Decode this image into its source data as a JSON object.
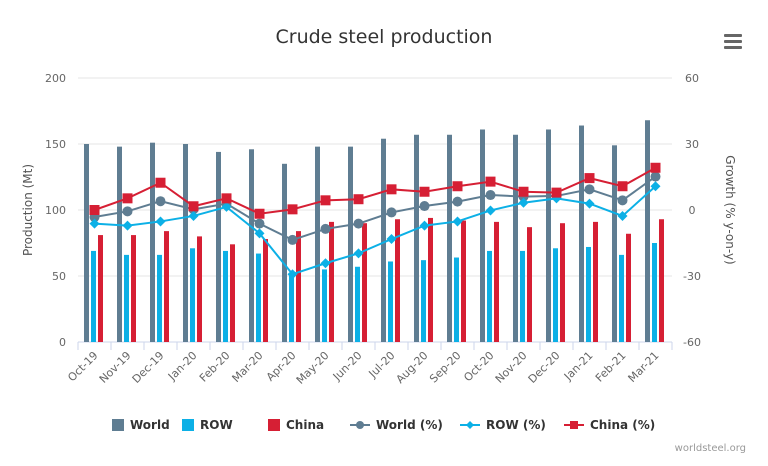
{
  "title": "Crude steel production",
  "credit": "worldsteel.org",
  "menu_icon": "hamburger-menu-icon",
  "chart_data": {
    "type": "bar+line",
    "title": "Crude steel production",
    "categories": [
      "Oct-19",
      "Nov-19",
      "Dec-19",
      "Jan-20",
      "Feb-20",
      "Mar-20",
      "Apr-20",
      "May-20",
      "Jun-20",
      "Jul-20",
      "Aug-20",
      "Sep-20",
      "Oct-20",
      "Nov-20",
      "Dec-20",
      "Jan-21",
      "Feb-21",
      "Mar-21"
    ],
    "y_left": {
      "label": "Production (Mt)",
      "ylim": [
        0,
        200
      ],
      "ticks": [
        0,
        50,
        100,
        150,
        200
      ]
    },
    "y_right": {
      "label": "Growth (% y-on-y)",
      "ylim": [
        -60,
        60
      ],
      "ticks": [
        -60,
        -30,
        0,
        30,
        60
      ]
    },
    "grid": true,
    "legend_position": "bottom",
    "bar_series": [
      {
        "name": "World",
        "color": "#5f7d92",
        "values": [
          150,
          148,
          151,
          150,
          144,
          146,
          135,
          148,
          148,
          154,
          157,
          157,
          161,
          157,
          161,
          164,
          149,
          168
        ]
      },
      {
        "name": "ROW",
        "color": "#0cb0e6",
        "values": [
          69,
          66,
          66,
          71,
          69,
          67,
          52,
          55,
          57,
          61,
          62,
          64,
          69,
          69,
          71,
          72,
          66,
          75
        ]
      },
      {
        "name": "China",
        "color": "#d61f34",
        "values": [
          81,
          81,
          84,
          80,
          74,
          78,
          84,
          91,
          90,
          93,
          94,
          92,
          91,
          87,
          90,
          91,
          82,
          93
        ]
      }
    ],
    "line_series": [
      {
        "name": "World (%)",
        "color": "#5f7d92",
        "marker": "circle",
        "values": [
          -3.2,
          -0.6,
          4.0,
          0.3,
          2.9,
          -6.2,
          -13.6,
          -8.6,
          -6.2,
          -1.1,
          1.8,
          3.8,
          6.8,
          6.1,
          6.4,
          9.4,
          4.4,
          15.2
        ]
      },
      {
        "name": "ROW (%)",
        "color": "#0cb0e6",
        "marker": "diamond",
        "values": [
          -6.2,
          -7.1,
          -5.2,
          -2.7,
          1.4,
          -10.6,
          -29.2,
          -24.2,
          -19.7,
          -13.2,
          -7.1,
          -5.2,
          -0.2,
          3.3,
          5.3,
          2.9,
          -2.7,
          10.8
        ]
      },
      {
        "name": "China (%)",
        "color": "#d61f34",
        "marker": "square",
        "values": [
          0.0,
          5.3,
          12.4,
          1.7,
          5.3,
          -1.7,
          0.3,
          4.4,
          4.9,
          9.4,
          8.3,
          10.8,
          12.9,
          8.3,
          7.9,
          14.5,
          10.8,
          19.2
        ]
      }
    ]
  }
}
